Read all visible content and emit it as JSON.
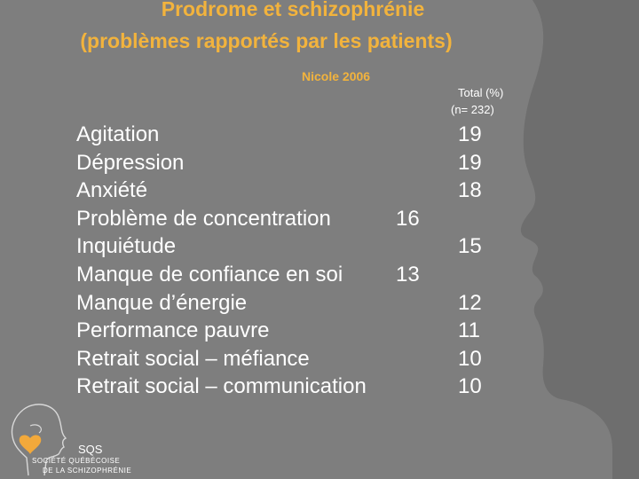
{
  "slide": {
    "title_line1": "Prodrome et schizophrénie",
    "title_line2": "(problèmes rapportés par les patients)",
    "author": "Nicole 2006",
    "column_header_line1": "Total (%)",
    "column_header_line2": "(n= 232)",
    "rows": [
      {
        "label": "Agitation",
        "value": "19"
      },
      {
        "label": "Dépression",
        "value": "19"
      },
      {
        "label": "Anxiété",
        "value": "18"
      },
      {
        "label": "Problème de concentration",
        "value": "16"
      },
      {
        "label": "Inquiétude",
        "value": "15"
      },
      {
        "label": "Manque de confiance en soi",
        "value": "13"
      },
      {
        "label": "Manque d’énergie",
        "value": "12"
      },
      {
        "label": "Performance pauvre",
        "value": "11"
      },
      {
        "label": "Retrait social – méfiance",
        "value": "10"
      },
      {
        "label": "Retrait social – communication",
        "value": "10"
      }
    ]
  },
  "logo": {
    "abbr": "SQS",
    "line1": "SOCIÉTÉ QUÉBÉCOISE",
    "line2": "DE LA SCHIZOPHRÉNIE"
  },
  "colors": {
    "background": "#7e7e7e",
    "silhouette": "#6e6e6e",
    "title": "#f2b33d",
    "text": "#ffffff",
    "heart": "#f2a93b"
  }
}
